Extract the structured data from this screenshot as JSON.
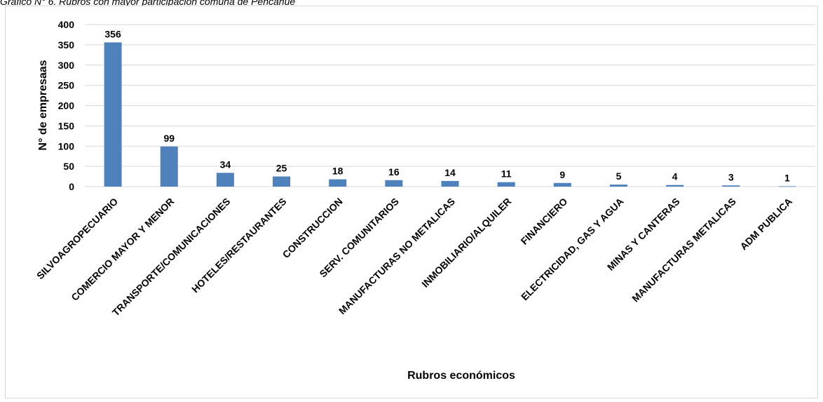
{
  "caption": "Gráfico N° 6. Rubros con mayor participación comuna de Pencahue",
  "chart_data": {
    "type": "bar",
    "categories": [
      "SILVOAGROPECUARIO",
      "COMERCIO MAYOR Y MENOR",
      "TRANSPORTE/COMUNICACIONES",
      "HOTELES/RESTAURANTES",
      "CONSTRUCCION",
      "SERV. COMUNITARIOS",
      "MANUFACTURAS NO METALICAS",
      "INMOBILIARIO/ALQUILER",
      "FINANCIERO",
      "ELECTRICIDAD, GAS Y AGUA",
      "MINAS Y CANTERAS",
      "MANUFACTURAS METALICAS",
      "ADM PUBLICA"
    ],
    "values": [
      356,
      99,
      34,
      25,
      18,
      16,
      14,
      11,
      9,
      5,
      4,
      3,
      1
    ],
    "xlabel": "Rubros económicos",
    "ylabel": "N° de empresaas",
    "ylim": [
      0,
      400
    ],
    "yticks": [
      0,
      50,
      100,
      150,
      200,
      250,
      300,
      350,
      400
    ],
    "grid": true,
    "bar_color": "#4f81bd"
  }
}
